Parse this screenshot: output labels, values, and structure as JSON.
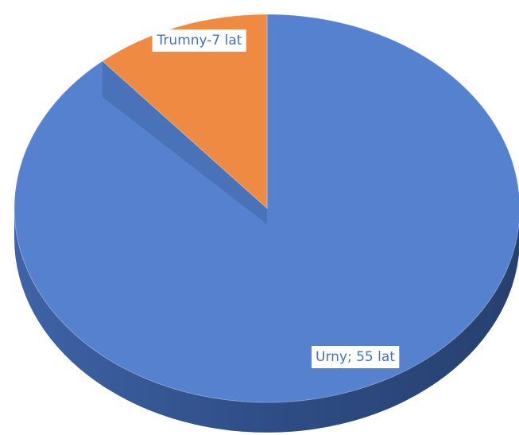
{
  "chart_data": {
    "type": "pie",
    "values": [
      55,
      7
    ],
    "value_labels": [
      "Urny; 55 lat",
      "Trumny-7 lat"
    ],
    "colors": [
      "#5681ce",
      "#ef8a42"
    ]
  }
}
